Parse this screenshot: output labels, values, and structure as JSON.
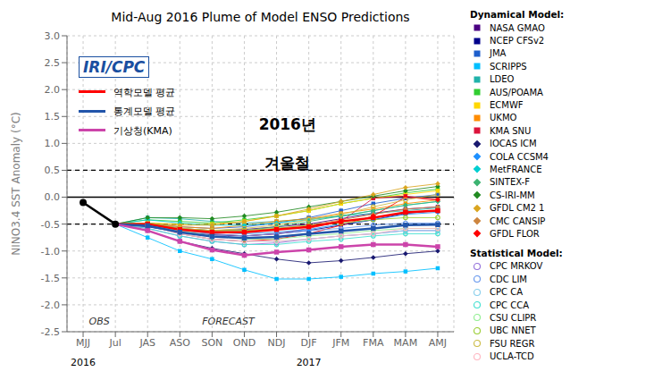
{
  "chart_data": {
    "type": "line",
    "title": "Mid-Aug 2016 Plume of Model ENSO Predictions",
    "y_label": "NINO3.4 SST Anomaly (°C)",
    "categories": [
      "MJJ",
      "Jul",
      "JAS",
      "ASO",
      "SON",
      "OND",
      "NDJ",
      "DJF",
      "JFM",
      "FMA",
      "MAM",
      "AMJ"
    ],
    "ylim": [
      -2.5,
      3.0
    ],
    "yticks": [
      -2.5,
      {
        "value": -2,
        "label": "-2.0"
      },
      -1.5,
      {
        "value": -1,
        "label": "-1.0"
      },
      -0.5,
      {
        "value": 0,
        "label": "0.0"
      },
      0.5,
      {
        "value": 1,
        "label": "1.0"
      },
      1.5,
      {
        "value": 2,
        "label": "2.0"
      },
      2.5,
      {
        "value": 3,
        "label": "3.0"
      }
    ],
    "grid": true,
    "reference_lines": [
      {
        "y": 0,
        "line_style": "solid"
      },
      {
        "y": 0.5,
        "line_style": "dashed"
      },
      {
        "y": -0.5,
        "line_style": "dashed"
      }
    ],
    "annotations": [
      "OBS",
      "FORECAST",
      "2016",
      "2017",
      "IRI/CPC",
      "2016년",
      "겨울철",
      "Dynamical Model:",
      "Statistical Model:"
    ],
    "series": [
      {
        "name": "NASA GMAO",
        "color": "#4b0082",
        "marker": "square",
        "line_style": "solid",
        "values": [
          null,
          -0.5,
          -0.52,
          -0.6,
          -0.62,
          -0.6,
          -0.55,
          -0.5,
          -0.4,
          -0.3,
          -0.22,
          -0.18
        ]
      },
      {
        "name": "NCEP CFSv2",
        "color": "#00008b",
        "marker": "square",
        "line_style": "solid",
        "values": [
          null,
          -0.5,
          -0.55,
          -0.65,
          -0.7,
          -0.72,
          -0.68,
          -0.62,
          -0.52,
          -0.42,
          -0.3,
          -0.25
        ]
      },
      {
        "name": "JMA",
        "color": "#1e5fcc",
        "marker": "square",
        "line_style": "solid",
        "values": [
          null,
          -0.5,
          -0.48,
          -0.55,
          -0.58,
          -0.55,
          -0.48,
          -0.38,
          -0.25,
          -0.12,
          -0.02,
          0.05
        ]
      },
      {
        "name": "SCRIPPS",
        "color": "#00bfff",
        "marker": "square",
        "line_style": "solid",
        "values": [
          null,
          -0.5,
          -0.75,
          -1.0,
          -1.15,
          -1.35,
          -1.52,
          -1.52,
          -1.48,
          -1.42,
          -1.38,
          -1.32
        ]
      },
      {
        "name": "LDEO",
        "color": "#20b2aa",
        "marker": "square",
        "line_style": "solid",
        "values": [
          null,
          -0.5,
          -0.38,
          -0.4,
          -0.45,
          -0.48,
          -0.45,
          -0.4,
          -0.35,
          -0.3,
          -0.25,
          -0.2
        ]
      },
      {
        "name": "AUS/POAMA",
        "color": "#32cd32",
        "marker": "square",
        "line_style": "solid",
        "values": [
          null,
          -0.5,
          -0.42,
          -0.45,
          -0.48,
          -0.42,
          -0.35,
          -0.25,
          -0.12,
          -0.02,
          0.08,
          0.15
        ]
      },
      {
        "name": "ECMWF",
        "color": "#ffd700",
        "marker": "square",
        "line_style": "solid",
        "values": [
          null,
          -0.5,
          -0.48,
          -0.5,
          -0.5,
          -0.45,
          -0.35,
          -0.25,
          -0.12,
          -0.02,
          0.05,
          0.12
        ]
      },
      {
        "name": "UKMO",
        "color": "#ff8c00",
        "marker": "square",
        "line_style": "solid",
        "values": [
          null,
          -0.5,
          -0.48,
          -0.55,
          -0.58,
          -0.52,
          -0.45,
          -0.4,
          -0.3,
          -0.22,
          -0.12,
          -0.05
        ]
      },
      {
        "name": "KMA SNU",
        "color": "#dc143c",
        "marker": "square",
        "line_style": "solid",
        "values": [
          null,
          -0.5,
          -0.5,
          -0.6,
          -0.68,
          -0.72,
          -0.68,
          -0.58,
          -0.45,
          -0.02,
          0.02,
          -0.05
        ]
      },
      {
        "name": "IOCAS ICM",
        "color": "#191970",
        "marker": "diamond",
        "line_style": "solid",
        "values": [
          null,
          -0.5,
          -0.62,
          -0.82,
          -0.95,
          -1.05,
          -1.15,
          -1.22,
          -1.18,
          -1.12,
          -1.05,
          -1.0
        ]
      },
      {
        "name": "COLA CCSM4",
        "color": "#1e90ff",
        "marker": "diamond",
        "line_style": "solid",
        "values": [
          null,
          -0.5,
          -0.48,
          -0.58,
          -0.65,
          -0.68,
          -0.65,
          -0.6,
          -0.5,
          -0.42,
          -0.32,
          -0.28
        ]
      },
      {
        "name": "MetFRANCE",
        "color": "#00ced1",
        "marker": "diamond",
        "line_style": "solid",
        "values": [
          null,
          -0.5,
          -0.42,
          -0.48,
          -0.52,
          -0.52,
          -0.48,
          -0.42,
          -0.35,
          -0.25,
          -0.15,
          -0.08
        ]
      },
      {
        "name": "SINTEX-F",
        "color": "#3cb371",
        "marker": "diamond",
        "line_style": "solid",
        "values": [
          null,
          -0.5,
          -0.48,
          -0.58,
          -0.62,
          -0.62,
          -0.55,
          -0.45,
          -0.35,
          -0.25,
          -0.15,
          -0.08
        ]
      },
      {
        "name": "CS-IRI-MM",
        "color": "#228b22",
        "marker": "diamond",
        "line_style": "solid",
        "values": [
          null,
          -0.5,
          -0.38,
          -0.38,
          -0.4,
          -0.35,
          -0.28,
          -0.18,
          -0.08,
          0.02,
          0.12,
          0.2
        ]
      },
      {
        "name": "GFDL CM2 1",
        "color": "#daa520",
        "marker": "diamond",
        "line_style": "solid",
        "values": [
          null,
          -0.5,
          -0.48,
          -0.52,
          -0.52,
          -0.45,
          -0.35,
          -0.22,
          -0.08,
          0.05,
          0.18,
          0.25
        ]
      },
      {
        "name": "CMC CANSIP",
        "color": "#cd853f",
        "marker": "diamond",
        "line_style": "solid",
        "values": [
          null,
          -0.5,
          -0.48,
          -0.58,
          -0.62,
          -0.62,
          -0.58,
          -0.52,
          -0.42,
          -0.32,
          -0.22,
          -0.18
        ]
      },
      {
        "name": "GFDL FLOR",
        "color": "#ff0000",
        "marker": "diamond",
        "line_style": "solid",
        "values": [
          null,
          -0.5,
          -0.52,
          -0.68,
          -0.78,
          -0.82,
          -0.78,
          -0.68,
          -0.52,
          -0.35,
          0.0,
          -0.05
        ]
      },
      {
        "name": "CPC MRKOV",
        "color": "#9370db",
        "marker": "open_circle",
        "line_style": "solid",
        "values": [
          null,
          -0.5,
          -0.58,
          -0.72,
          -0.82,
          -0.88,
          -0.85,
          -0.78,
          -0.72,
          -0.68,
          -0.62,
          -0.62
        ]
      },
      {
        "name": "CDC LIM",
        "color": "#6495ed",
        "marker": "open_circle",
        "line_style": "solid",
        "values": [
          null,
          -0.5,
          -0.52,
          -0.62,
          -0.68,
          -0.72,
          -0.68,
          -0.62,
          -0.58,
          -0.52,
          -0.48,
          -0.48
        ]
      },
      {
        "name": "CPC CA",
        "color": "#87ceeb",
        "marker": "open_circle",
        "line_style": "solid",
        "values": [
          null,
          -0.5,
          -0.52,
          -0.68,
          -0.78,
          -0.82,
          -0.82,
          -0.78,
          -0.72,
          -0.68,
          -0.62,
          -0.62
        ]
      },
      {
        "name": "CPC CCA",
        "color": "#40e0d0",
        "marker": "open_circle",
        "line_style": "solid",
        "values": [
          null,
          -0.5,
          -0.58,
          -0.72,
          -0.82,
          -0.88,
          -0.88,
          -0.82,
          -0.78,
          -0.72,
          -0.68,
          -0.68
        ]
      },
      {
        "name": "CSU CLIPR",
        "color": "#90ee90",
        "marker": "open_circle",
        "line_style": "solid",
        "values": [
          null,
          -0.5,
          -0.52,
          -0.62,
          -0.72,
          -0.78,
          -0.78,
          -0.72,
          -0.68,
          -0.62,
          -0.58,
          -0.58
        ]
      },
      {
        "name": "UBC NNET",
        "color": "#9acd32",
        "marker": "open_circle",
        "line_style": "solid",
        "values": [
          null,
          -0.5,
          -0.48,
          -0.58,
          -0.62,
          -0.62,
          -0.58,
          -0.52,
          -0.48,
          -0.42,
          -0.38,
          -0.38
        ]
      },
      {
        "name": "FSU REGR",
        "color": "#ccbb44",
        "marker": "open_circle",
        "line_style": "solid",
        "values": [
          null,
          -0.5,
          -0.48,
          -0.58,
          -0.62,
          -0.58,
          -0.52,
          -0.42,
          -0.32,
          -0.18,
          -0.05,
          0.05
        ]
      },
      {
        "name": "UCLA-TCD",
        "color": "#ffb6c1",
        "marker": "open_circle",
        "line_style": "solid",
        "values": [
          null,
          -0.5,
          -0.52,
          -0.68,
          -0.78,
          -0.82,
          -0.82,
          -0.78,
          -0.72,
          -0.68,
          -0.58,
          -0.58
        ]
      },
      {
        "color": "#000000",
        "marker": "circle",
        "line_style": "thick",
        "values": [
          -0.1,
          -0.5,
          null,
          null,
          null,
          null,
          null,
          null,
          null,
          null,
          null,
          null
        ]
      },
      {
        "name": "역학모델 평균",
        "color": "#ff0000",
        "marker": "square",
        "line_style": "thick",
        "values": [
          null,
          -0.5,
          -0.5,
          -0.6,
          -0.65,
          -0.65,
          -0.6,
          -0.55,
          -0.45,
          -0.38,
          -0.28,
          -0.25
        ]
      },
      {
        "name": "통계모델 평균",
        "color": "#2255aa",
        "marker": "square",
        "line_style": "thick",
        "values": [
          null,
          -0.5,
          -0.53,
          -0.65,
          -0.73,
          -0.76,
          -0.74,
          -0.68,
          -0.63,
          -0.58,
          -0.52,
          -0.51
        ]
      },
      {
        "name": "기상청(KMA)",
        "color": "#cc44aa",
        "marker": "square",
        "line_style": "thick",
        "values": [
          null,
          -0.5,
          -0.62,
          -0.82,
          -0.98,
          -1.08,
          -1.02,
          -0.98,
          -0.92,
          -0.88,
          -0.88,
          -0.92
        ]
      }
    ]
  }
}
